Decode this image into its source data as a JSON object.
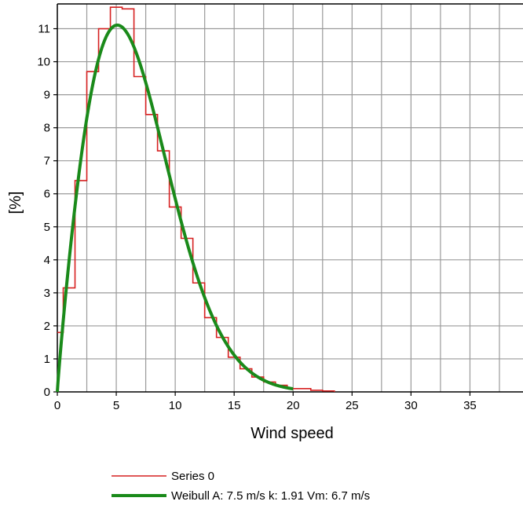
{
  "chart_data": {
    "type": "line",
    "xlabel": "Wind speed",
    "ylabel": "[%]",
    "xlim": [
      0,
      39.5
    ],
    "ylim": [
      0,
      11.75
    ],
    "xticks": [
      0,
      5,
      10,
      15,
      20,
      25,
      30,
      35
    ],
    "yticks": [
      0,
      1,
      2,
      3,
      4,
      5,
      6,
      7,
      8,
      9,
      10,
      11
    ],
    "grid": true,
    "legend_position": "bottom",
    "series": [
      {
        "name": "Series 0",
        "style": "step",
        "color": "#d62020",
        "x": [
          0,
          0.5,
          1.5,
          2.5,
          3.5,
          4.5,
          5.5,
          6.5,
          7.5,
          8.5,
          9.5,
          10.5,
          11.5,
          12.5,
          13.5,
          14.5,
          15.5,
          16.5,
          17.5,
          18.5,
          19.5,
          20.5,
          21.5,
          22.5,
          23.5
        ],
        "y": [
          1.8,
          3.15,
          6.4,
          9.7,
          11.0,
          11.65,
          11.6,
          9.55,
          8.4,
          7.3,
          5.6,
          4.65,
          3.3,
          2.25,
          1.65,
          1.05,
          0.7,
          0.45,
          0.3,
          0.2,
          0.1,
          0.1,
          0.05,
          0.03,
          0
        ]
      },
      {
        "name": "Weibull A: 7.5 m/s k: 1.91 Vm: 6.7 m/s",
        "style": "line",
        "color": "#1a8a1a",
        "weibull": {
          "A": 7.5,
          "k": 1.91
        },
        "x_range": [
          0,
          20
        ]
      }
    ]
  }
}
